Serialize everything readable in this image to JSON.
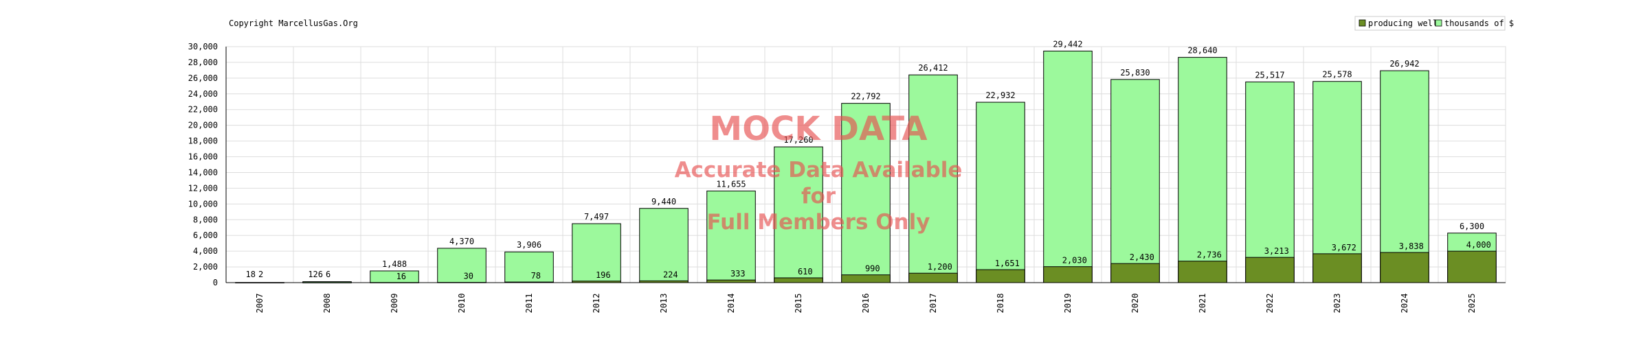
{
  "copyright": "Copyright MarcellusGas.Org",
  "watermark": {
    "title": "MOCK DATA",
    "lines": [
      "Accurate Data Available",
      "for",
      "Full Members Only"
    ]
  },
  "colors": {
    "thousands": "#9cf99c",
    "producing": "#6b8e23",
    "grid": "#dddddd",
    "border": "#000000"
  },
  "chart_data": {
    "type": "bar",
    "categories": [
      "2007",
      "2008",
      "2009",
      "2010",
      "2011",
      "2012",
      "2013",
      "2014",
      "2015",
      "2016",
      "2017",
      "2018",
      "2019",
      "2020",
      "2021",
      "2022",
      "2023",
      "2024",
      "2025"
    ],
    "series": [
      {
        "name": "thousands of $",
        "values": [
          18,
          126,
          1488,
          4370,
          3906,
          7497,
          9440,
          11655,
          17260,
          22792,
          26412,
          22932,
          29442,
          25830,
          28640,
          25517,
          25578,
          26942,
          6300
        ],
        "labels": [
          "18",
          "126",
          "1,488",
          "4,370",
          "3,906",
          "7,497",
          "9,440",
          "11,655",
          "17,260",
          "22,792",
          "26,412",
          "22,932",
          "29,442",
          "25,830",
          "28,640",
          "25,517",
          "25,578",
          "26,942",
          "6,300"
        ]
      },
      {
        "name": "producing wells",
        "values": [
          2,
          6,
          16,
          30,
          78,
          196,
          224,
          333,
          610,
          990,
          1200,
          1651,
          2030,
          2430,
          2736,
          3213,
          3672,
          3838,
          4000
        ],
        "labels": [
          "2",
          "6",
          "16",
          "30",
          "78",
          "196",
          "224",
          "333",
          "610",
          "990",
          "1,200",
          "1,651",
          "2,030",
          "2,430",
          "2,736",
          "3,213",
          "3,672",
          "3,838",
          "4,000"
        ]
      }
    ],
    "legend": [
      "producing wells",
      "thousands of $"
    ],
    "legend_position": "top-right",
    "ylim": [
      0,
      30000
    ],
    "yticks": [
      0,
      2000,
      4000,
      6000,
      8000,
      10000,
      12000,
      14000,
      16000,
      18000,
      20000,
      22000,
      24000,
      26000,
      28000,
      30000
    ],
    "ytick_labels": [
      "0",
      "2,000",
      "4,000",
      "6,000",
      "8,000",
      "10,000",
      "12,000",
      "14,000",
      "16,000",
      "18,000",
      "20,000",
      "22,000",
      "24,000",
      "26,000",
      "28,000",
      "30,000"
    ],
    "grid": true
  }
}
